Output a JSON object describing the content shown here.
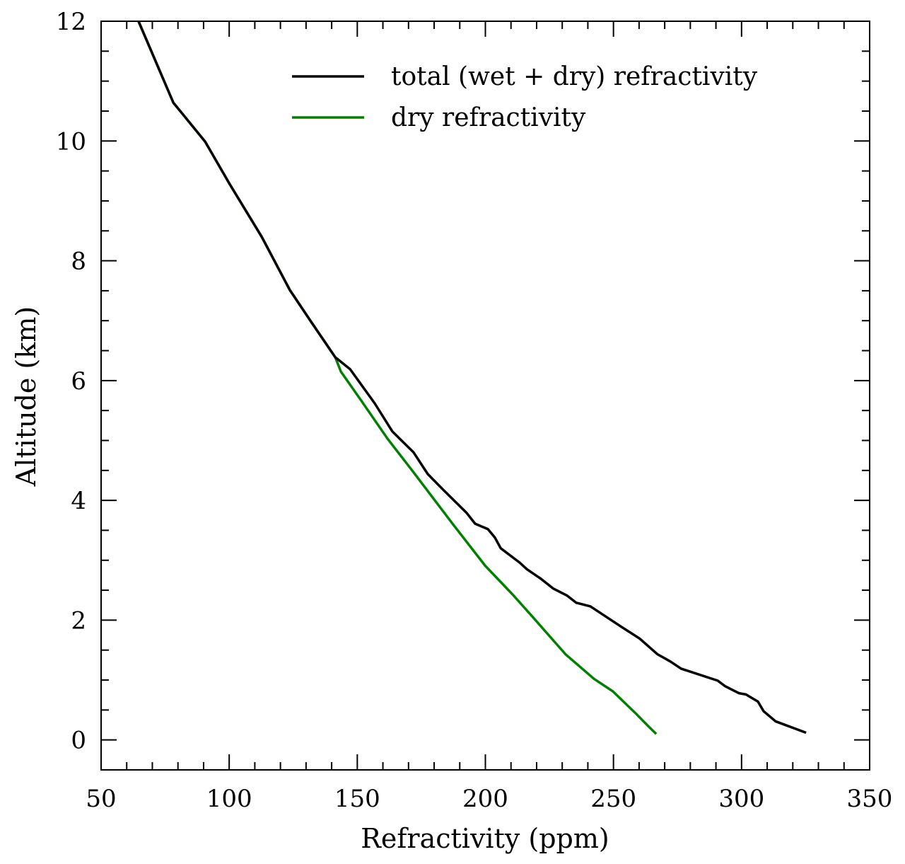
{
  "chart_data": {
    "type": "line",
    "title": "",
    "xlabel": "Refractivity (ppm)",
    "ylabel": "Altitude (km)",
    "xlim": [
      50,
      350
    ],
    "ylim": [
      -0.5,
      12
    ],
    "xticks": [
      50,
      100,
      150,
      200,
      250,
      300,
      350
    ],
    "yticks": [
      0,
      2,
      4,
      6,
      8,
      10,
      12
    ],
    "x_minor_step": 10,
    "y_minor_step": 0.5,
    "grid": false,
    "legend_position": "top-right",
    "series": [
      {
        "name": "total (wet + dry) refractivity",
        "color": "#000000",
        "points": [
          [
            64.6,
            12.0
          ],
          [
            78.2,
            10.64
          ],
          [
            90.6,
            9.99
          ],
          [
            100.2,
            9.28
          ],
          [
            112.7,
            8.4
          ],
          [
            123.7,
            7.51
          ],
          [
            132,
            6.98
          ],
          [
            141.4,
            6.39
          ],
          [
            147.2,
            6.19
          ],
          [
            156.8,
            5.62
          ],
          [
            163.7,
            5.15
          ],
          [
            172,
            4.8
          ],
          [
            177.5,
            4.44
          ],
          [
            183,
            4.2
          ],
          [
            192.7,
            3.79
          ],
          [
            196,
            3.61
          ],
          [
            201,
            3.52
          ],
          [
            203.7,
            3.38
          ],
          [
            206,
            3.2
          ],
          [
            213.4,
            2.96
          ],
          [
            216.2,
            2.85
          ],
          [
            221.7,
            2.69
          ],
          [
            226.4,
            2.53
          ],
          [
            231.9,
            2.41
          ],
          [
            235.5,
            2.29
          ],
          [
            241,
            2.23
          ],
          [
            253.4,
            1.88
          ],
          [
            260.3,
            1.69
          ],
          [
            267.2,
            1.43
          ],
          [
            272.2,
            1.31
          ],
          [
            276.4,
            1.19
          ],
          [
            290.7,
            0.99
          ],
          [
            293.5,
            0.9
          ],
          [
            299,
            0.78
          ],
          [
            301.7,
            0.76
          ],
          [
            306.4,
            0.64
          ],
          [
            308.6,
            0.48
          ],
          [
            313.3,
            0.31
          ],
          [
            325.2,
            0.12
          ]
        ]
      },
      {
        "name": "dry refractivity",
        "color": "#008000",
        "points": [
          [
            64.6,
            12.0
          ],
          [
            78.2,
            10.64
          ],
          [
            90.6,
            9.99
          ],
          [
            100.2,
            9.28
          ],
          [
            112.7,
            8.4
          ],
          [
            123.7,
            7.51
          ],
          [
            132,
            6.98
          ],
          [
            141.4,
            6.39
          ],
          [
            143.6,
            6.15
          ],
          [
            151.3,
            5.68
          ],
          [
            161.8,
            5.03
          ],
          [
            171.4,
            4.5
          ],
          [
            187.2,
            3.61
          ],
          [
            199.9,
            2.91
          ],
          [
            210.6,
            2.43
          ],
          [
            217.5,
            2.1
          ],
          [
            231.3,
            1.43
          ],
          [
            242.4,
            1.02
          ],
          [
            249.8,
            0.81
          ],
          [
            259,
            0.43
          ],
          [
            263.1,
            0.25
          ],
          [
            266.7,
            0.1
          ]
        ]
      }
    ]
  }
}
